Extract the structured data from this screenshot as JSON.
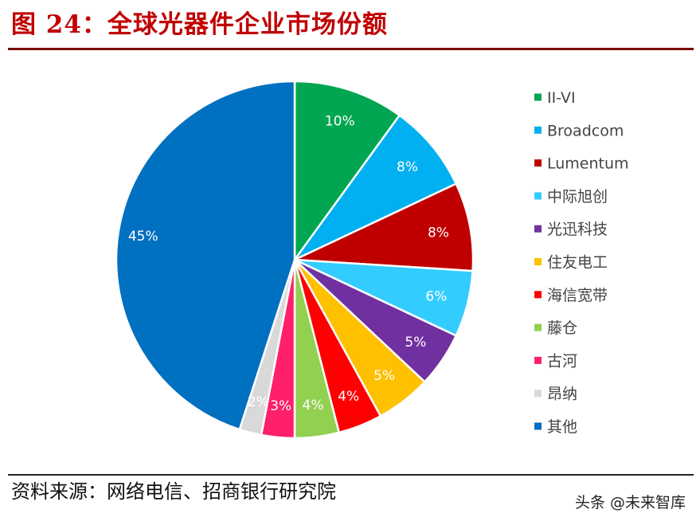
{
  "title": "图 24：全球光器件企业市场份额",
  "source": "资料来源：网络电信、招商银行研究院",
  "watermark": "头条 @未来智库",
  "chart_data": {
    "type": "pie",
    "title": "",
    "legend_position": "right",
    "slices": [
      {
        "label": "II-VI",
        "value": 10,
        "display": "10%",
        "color": "#00a651"
      },
      {
        "label": "Broadcom",
        "value": 8,
        "display": "8%",
        "color": "#00b0f0"
      },
      {
        "label": "Lumentum",
        "value": 8,
        "display": "8%",
        "color": "#c00000"
      },
      {
        "label": "中际旭创",
        "value": 6,
        "display": "6%",
        "color": "#33ccff"
      },
      {
        "label": "光迅科技",
        "value": 5,
        "display": "5%",
        "color": "#7030a0"
      },
      {
        "label": "住友电工",
        "value": 5,
        "display": "5%",
        "color": "#ffc000"
      },
      {
        "label": "海信宽带",
        "value": 4,
        "display": "4%",
        "color": "#ff0000"
      },
      {
        "label": "藤仓",
        "value": 4,
        "display": "4%",
        "color": "#92d050"
      },
      {
        "label": "古河",
        "value": 3,
        "display": "3%",
        "color": "#ff1f6b"
      },
      {
        "label": "昂纳",
        "value": 2,
        "display": "2%",
        "color": "#d9d9d9"
      },
      {
        "label": "其他",
        "value": 45,
        "display": "45%",
        "color": "#0070c0"
      }
    ]
  }
}
